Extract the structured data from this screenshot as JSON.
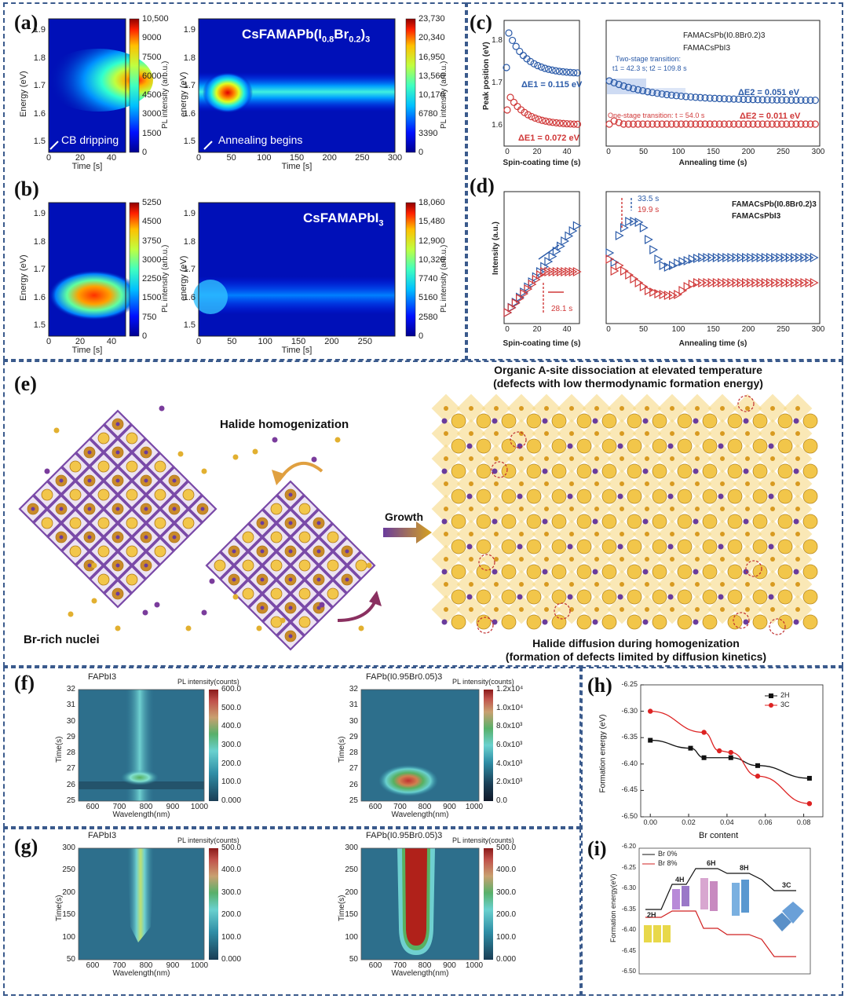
{
  "panels": {
    "a": "(a)",
    "b": "(b)",
    "c": "(c)",
    "d": "(d)",
    "e": "(e)",
    "f": "(f)",
    "g": "(g)",
    "h": "(h)",
    "i": "(i)"
  },
  "a": {
    "left": {
      "ylabel": "Energy (eV)",
      "xlabel": "Time [s]",
      "xticks": [
        "0",
        "20",
        "40"
      ],
      "yticks": [
        "1.9",
        "1.8",
        "1.7",
        "1.6",
        "1.5"
      ],
      "annotation": "CB dripping",
      "cbar": [
        "10,500",
        "9000",
        "7500",
        "6000",
        "4500",
        "3000",
        "1500",
        "0"
      ],
      "cbar_label": "PL intensity (arb.u.)"
    },
    "right": {
      "title": "CsFAMAPb(I",
      "title_sub1": "0.8",
      "title_mid": "Br",
      "title_sub2": "0.2",
      "title_end": ")",
      "title_sub3": "3",
      "ylabel": "energy (eV)",
      "xlabel": "Time [s]",
      "xticks": [
        "0",
        "50",
        "100",
        "150",
        "200",
        "250",
        "300"
      ],
      "yticks": [
        "1.9",
        "1.8",
        "1.7",
        "1.6",
        "1.5"
      ],
      "annotation": "Annealing begins",
      "cbar": [
        "23,730",
        "20,340",
        "16,950",
        "13,560",
        "10,170",
        "6780",
        "3390",
        "0"
      ],
      "cbar_label": "PL intensity (arb.u.)"
    }
  },
  "b": {
    "left": {
      "ylabel": "Energy (eV)",
      "xlabel": "Time [s]",
      "xticks": [
        "0",
        "20",
        "40"
      ],
      "yticks": [
        "1.9",
        "1.8",
        "1.7",
        "1.6",
        "1.5"
      ],
      "cbar": [
        "5250",
        "4500",
        "3750",
        "3000",
        "2250",
        "1500",
        "750",
        "0"
      ],
      "cbar_label": "PL intensity (arb.u.)"
    },
    "right": {
      "title": "CsFAMAPbI",
      "title_sub": "3",
      "ylabel": "energy (eV)",
      "xlabel": "Time [s]",
      "xticks": [
        "0",
        "50",
        "100",
        "150",
        "200",
        "250"
      ],
      "yticks": [
        "1.9",
        "1.8",
        "1.7",
        "1.6",
        "1.5"
      ],
      "cbar": [
        "18,060",
        "15,480",
        "12,900",
        "10,320",
        "7740",
        "5160",
        "2580",
        "0"
      ],
      "cbar_label": "PL intensity (arb.u.)"
    }
  },
  "c": {
    "ylabel": "Peak position (eV)",
    "yticks": [
      "1.8",
      "1.7",
      "1.6"
    ],
    "left_xlabel": "Spin-coating time (s)",
    "left_xticks": [
      "0",
      "20",
      "40"
    ],
    "right_xlabel": "Annealing time (s)",
    "right_xticks": [
      "0",
      "50",
      "100",
      "150",
      "200",
      "250",
      "300"
    ],
    "legend": [
      "FAMACsPb(I0.8Br0.2)3",
      "FAMACsPbI3"
    ],
    "de1_blue": "ΔE1 = 0.115 eV",
    "de1_red": "ΔE1 = 0.072 eV",
    "de2_blue": "ΔE2 = 0.051 eV",
    "de2_red": "ΔE2 = 0.011 eV",
    "two_stage": "Two-stage transition:",
    "two_stage_t": "t1 = 42.3 s; t2 = 109.8 s",
    "one_stage": "One-stage transition: t = 54.0 s"
  },
  "d": {
    "ylabel": "Intensity (a.u.)",
    "left_xlabel": "Spin-coating time (s)",
    "left_xticks": [
      "0",
      "20",
      "40"
    ],
    "right_xlabel": "Annealing time (s)",
    "right_xticks": [
      "0",
      "50",
      "100",
      "150",
      "200",
      "250",
      "300"
    ],
    "legend": [
      "FAMACsPb(I0.8Br0.2)3",
      "FAMACsPbI3"
    ],
    "t_left": "28.1 s",
    "t_blue": "33.5 s",
    "t_red": "19.9 s"
  },
  "e": {
    "title1": "Organic A-site dissociation at elevated temperature",
    "title2": "(defects with low thermodynamic formation energy)",
    "halide": "Halide homogenization",
    "growth": "Growth",
    "nuclei": "Br-rich nuclei",
    "bottom1": "Halide diffusion during homogenization",
    "bottom2": "(formation of defects limited by diffusion kinetics)"
  },
  "f": {
    "left": {
      "title": "FAPbI3",
      "cbar_label": "PL intensity(counts)",
      "cbar": [
        "600.0",
        "500.0",
        "400.0",
        "300.0",
        "200.0",
        "100.0",
        "0.000"
      ],
      "ylabel": "Time(s)",
      "xlabel": "Wavelength(nm)",
      "yticks": [
        "32",
        "31",
        "30",
        "29",
        "28",
        "27",
        "26",
        "25"
      ],
      "xticks": [
        "600",
        "700",
        "800",
        "900",
        "1000"
      ]
    },
    "right": {
      "title": "FAPb(I0.95Br0.05)3",
      "cbar_label": "PL intensity(counts)",
      "cbar": [
        "1.2x10⁴",
        "1.0x10⁴",
        "8.0x10³",
        "6.0x10³",
        "4.0x10³",
        "2.0x10³",
        "0.0"
      ],
      "ylabel": "Time(s)",
      "xlabel": "Wavelength(nm)",
      "yticks": [
        "32",
        "31",
        "30",
        "29",
        "28",
        "27",
        "26",
        "25"
      ],
      "xticks": [
        "600",
        "700",
        "800",
        "900",
        "1000"
      ]
    }
  },
  "g": {
    "left": {
      "title": "FAPbI3",
      "cbar_label": "PL intensity(counts)",
      "cbar": [
        "500.0",
        "400.0",
        "300.0",
        "200.0",
        "100.0",
        "0.000"
      ],
      "ylabel": "Time(s)",
      "xlabel": "Wavelength(nm)",
      "yticks": [
        "300",
        "250",
        "200",
        "150",
        "100",
        "50"
      ],
      "xticks": [
        "600",
        "700",
        "800",
        "900",
        "1000"
      ]
    },
    "right": {
      "title": "FAPb(I0.95Br0.05)3",
      "cbar_label": "PL intensity(counts)",
      "cbar": [
        "500.0",
        "400.0",
        "300.0",
        "200.0",
        "100.0",
        "0.000"
      ],
      "ylabel": "Time(s)",
      "xlabel": "Wavelength(nm)",
      "yticks": [
        "300",
        "250",
        "200",
        "150",
        "100",
        "50"
      ],
      "xticks": [
        "600",
        "700",
        "800",
        "900",
        "1000"
      ]
    }
  },
  "h": {
    "ylabel": "Formation energy (eV)",
    "xlabel": "Br content",
    "legend": [
      "2H",
      "3C"
    ]
  },
  "i": {
    "ylabel": "Formation energy(eV)",
    "legend": [
      "Br 0%",
      "Br 8%"
    ],
    "phases": [
      "2H",
      "4H",
      "6H",
      "8H",
      "3C"
    ],
    "yticks": [
      "-6.20",
      "-6.25",
      "-6.30",
      "-6.35",
      "-6.40",
      "-6.45",
      "-6.50"
    ]
  },
  "chart_data": [
    {
      "type": "line",
      "title": "",
      "xlabel": "Br content",
      "ylabel": "Formation energy (eV)",
      "xlim": [
        -0.005,
        0.09
      ],
      "ylim": [
        -6.5,
        -6.25
      ],
      "xticks": [
        0.0,
        0.02,
        0.04,
        0.06,
        0.08
      ],
      "yticks": [
        -6.25,
        -6.3,
        -6.35,
        -6.4,
        -6.45,
        -6.5
      ],
      "series": [
        {
          "name": "2H",
          "color": "#111111",
          "x": [
            0.0,
            0.021,
            0.028,
            0.042,
            0.056,
            0.083
          ],
          "y": [
            -6.355,
            -6.37,
            -6.388,
            -6.388,
            -6.403,
            -6.427
          ]
        },
        {
          "name": "3C",
          "color": "#dd2222",
          "x": [
            0.0,
            0.028,
            0.036,
            0.042,
            0.056,
            0.083
          ],
          "y": [
            -6.3,
            -6.34,
            -6.375,
            -6.378,
            -6.423,
            -6.475
          ]
        }
      ]
    }
  ]
}
